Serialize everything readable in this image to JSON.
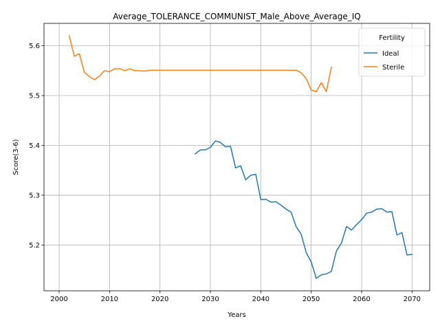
{
  "chart_data": {
    "type": "line",
    "title": "Average_TOLERANCE_COMMUNIST_Male_Above_Average_IQ",
    "xlabel": "Years",
    "ylabel": "Score(3-6)",
    "xlim": [
      1997,
      2073.5
    ],
    "ylim": [
      5.108,
      5.645
    ],
    "xticks": [
      2000,
      2010,
      2020,
      2030,
      2040,
      2050,
      2060,
      2070
    ],
    "yticks": [
      5.2,
      5.3,
      5.4,
      5.5,
      5.6
    ],
    "grid": true,
    "legend": {
      "title": "Fertility",
      "placement": "top-right"
    },
    "series": [
      {
        "name": "Ideal",
        "color": "#1f77b4",
        "x": [
          2027,
          2028,
          2029,
          2030,
          2031,
          2032,
          2033,
          2034,
          2035,
          2036,
          2037,
          2038,
          2039,
          2040,
          2041,
          2042,
          2043,
          2044,
          2045,
          2046,
          2047,
          2048,
          2049,
          2050,
          2051,
          2052,
          2053,
          2054,
          2055,
          2056,
          2057,
          2058,
          2059,
          2060,
          2061,
          2062,
          2063,
          2064,
          2065,
          2066,
          2067,
          2068,
          2069,
          2070
        ],
        "values": [
          5.383,
          5.391,
          5.391,
          5.396,
          5.409,
          5.406,
          5.397,
          5.398,
          5.355,
          5.359,
          5.331,
          5.34,
          5.342,
          5.291,
          5.292,
          5.286,
          5.287,
          5.28,
          5.272,
          5.266,
          5.237,
          5.222,
          5.185,
          5.166,
          5.133,
          5.14,
          5.142,
          5.147,
          5.188,
          5.204,
          5.237,
          5.23,
          5.241,
          5.251,
          5.264,
          5.266,
          5.272,
          5.273,
          5.266,
          5.267,
          5.22,
          5.225,
          5.18,
          5.181
        ]
      },
      {
        "name": "Sterile",
        "color": "#ff7f0e",
        "x": [
          2002,
          2003,
          2004,
          2005,
          2006,
          2007,
          2008,
          2009,
          2010,
          2011,
          2012,
          2013,
          2014,
          2015,
          2016,
          2017,
          2018,
          2019,
          2020,
          2021,
          2022,
          2023,
          2024,
          2025,
          2026,
          2027,
          2028,
          2029,
          2030,
          2031,
          2032,
          2033,
          2034,
          2035,
          2036,
          2037,
          2038,
          2039,
          2040,
          2041,
          2042,
          2043,
          2044,
          2045,
          2046,
          2047,
          2048,
          2049,
          2050,
          2051,
          2052,
          2053,
          2054
        ],
        "values": [
          5.62,
          5.579,
          5.584,
          5.547,
          5.538,
          5.532,
          5.539,
          5.55,
          5.548,
          5.554,
          5.554,
          5.55,
          5.554,
          5.55,
          5.55,
          5.549,
          5.551,
          5.551,
          5.551,
          5.551,
          5.551,
          5.551,
          5.551,
          5.551,
          5.551,
          5.551,
          5.551,
          5.551,
          5.551,
          5.551,
          5.551,
          5.551,
          5.551,
          5.551,
          5.551,
          5.551,
          5.551,
          5.551,
          5.551,
          5.551,
          5.551,
          5.551,
          5.551,
          5.551,
          5.551,
          5.551,
          5.546,
          5.534,
          5.511,
          5.508,
          5.526,
          5.508,
          5.557
        ]
      }
    ]
  }
}
